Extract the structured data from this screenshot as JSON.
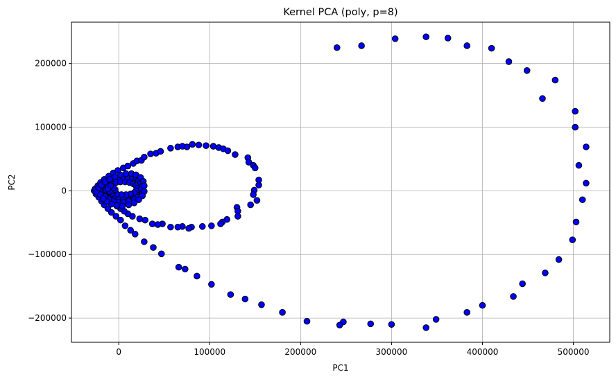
{
  "chart_data": {
    "type": "scatter",
    "title": "Kernel PCA (poly, p=8)",
    "xlabel": "PC1",
    "ylabel": "PC2",
    "xlim": [
      -52000,
      540000
    ],
    "ylim": [
      -238000,
      265000
    ],
    "xticks": [
      0,
      100000,
      200000,
      300000,
      400000,
      500000
    ],
    "xtick_labels": [
      "0",
      "100000",
      "200000",
      "300000",
      "400000",
      "500000"
    ],
    "yticks": [
      -200000,
      -100000,
      0,
      100000,
      200000
    ],
    "ytick_labels": [
      "−200000",
      "−100000",
      "0",
      "100000",
      "200000"
    ],
    "grid": true,
    "marker_color": "#0000ff",
    "edge_color": "#000000",
    "points": [
      [
        240000,
        225000
      ],
      [
        267000,
        228000
      ],
      [
        304000,
        239000
      ],
      [
        338000,
        242000
      ],
      [
        362000,
        240000
      ],
      [
        383000,
        228000
      ],
      [
        410000,
        224000
      ],
      [
        429000,
        203000
      ],
      [
        449000,
        189000
      ],
      [
        480000,
        174000
      ],
      [
        466000,
        145000
      ],
      [
        502000,
        125000
      ],
      [
        502000,
        100000
      ],
      [
        514000,
        69000
      ],
      [
        506000,
        40000
      ],
      [
        514000,
        12000
      ],
      [
        510000,
        -14000
      ],
      [
        503000,
        -49000
      ],
      [
        499000,
        -77000
      ],
      [
        484000,
        -108000
      ],
      [
        469000,
        -129000
      ],
      [
        444000,
        -146000
      ],
      [
        434000,
        -166000
      ],
      [
        400000,
        -180000
      ],
      [
        383000,
        -191000
      ],
      [
        349000,
        -202000
      ],
      [
        338000,
        -215000
      ],
      [
        300000,
        -210000
      ],
      [
        277000,
        -209000
      ],
      [
        247000,
        -206000
      ],
      [
        243000,
        -211000
      ],
      [
        207000,
        -205000
      ],
      [
        180000,
        -191000
      ],
      [
        157000,
        -179000
      ],
      [
        139000,
        -170000
      ],
      [
        123000,
        -163000
      ],
      [
        102000,
        -147000
      ],
      [
        86000,
        -134000
      ],
      [
        73000,
        -123000
      ],
      [
        66000,
        -120000
      ],
      [
        47000,
        -99000
      ],
      [
        38000,
        -89000
      ],
      [
        28000,
        -80000
      ],
      [
        18000,
        -68000
      ],
      [
        13000,
        -62000
      ],
      [
        7000,
        -55000
      ],
      [
        2000,
        -46000
      ],
      [
        -3000,
        -40000
      ],
      [
        -8000,
        -34000
      ],
      [
        -12000,
        -28000
      ],
      [
        -16000,
        -22000
      ],
      [
        -19000,
        -16000
      ],
      [
        -22000,
        -10000
      ],
      [
        -25000,
        -5000
      ],
      [
        -27000,
        0
      ],
      [
        -26000,
        3000
      ],
      [
        -23000,
        8000
      ],
      [
        -20000,
        13000
      ],
      [
        -16000,
        18000
      ],
      [
        -11000,
        23000
      ],
      [
        -6000,
        28000
      ],
      [
        -1000,
        32000
      ],
      [
        5000,
        36000
      ],
      [
        10000,
        39000
      ],
      [
        16000,
        43000
      ],
      [
        20000,
        47000
      ],
      [
        25000,
        48000
      ],
      [
        28000,
        53000
      ],
      [
        35000,
        58000
      ],
      [
        41000,
        59000
      ],
      [
        46000,
        62000
      ],
      [
        57000,
        67000
      ],
      [
        65000,
        69000
      ],
      [
        70000,
        70000
      ],
      [
        75000,
        69000
      ],
      [
        81000,
        73000
      ],
      [
        88000,
        72000
      ],
      [
        96000,
        71000
      ],
      [
        104000,
        70000
      ],
      [
        110000,
        68000
      ],
      [
        115000,
        66000
      ],
      [
        120000,
        63000
      ],
      [
        128000,
        57000
      ],
      [
        142000,
        52000
      ],
      [
        143000,
        45000
      ],
      [
        148000,
        40000
      ],
      [
        150000,
        36000
      ],
      [
        154000,
        17000
      ],
      [
        154000,
        9000
      ],
      [
        149000,
        1000
      ],
      [
        148000,
        -6000
      ],
      [
        152000,
        -15000
      ],
      [
        145000,
        -22000
      ],
      [
        130000,
        -26000
      ],
      [
        131000,
        -32000
      ],
      [
        131000,
        -40000
      ],
      [
        119000,
        -45000
      ],
      [
        114000,
        -49000
      ],
      [
        112000,
        -52000
      ],
      [
        102000,
        -55000
      ],
      [
        92000,
        -56000
      ],
      [
        80000,
        -57000
      ],
      [
        77000,
        -59000
      ],
      [
        70000,
        -56000
      ],
      [
        65000,
        -57000
      ],
      [
        57000,
        -57000
      ],
      [
        48000,
        -52000
      ],
      [
        43000,
        -53000
      ],
      [
        37000,
        -52000
      ],
      [
        29000,
        -46000
      ],
      [
        23000,
        -44000
      ],
      [
        15000,
        -40000
      ],
      [
        10000,
        -36000
      ],
      [
        6000,
        -32000
      ],
      [
        2000,
        -28000
      ],
      [
        -2000,
        -24000
      ],
      [
        -6000,
        -20000
      ],
      [
        -9000,
        -15000
      ],
      [
        -12000,
        -10000
      ],
      [
        -15000,
        -5000
      ],
      [
        -20000,
        -2000
      ],
      [
        -17000,
        5000
      ],
      [
        -14000,
        10000
      ],
      [
        -10000,
        14000
      ],
      [
        -5000,
        17000
      ],
      [
        0,
        19000
      ],
      [
        5000,
        20000
      ],
      [
        10000,
        21000
      ],
      [
        15000,
        21000
      ],
      [
        19000,
        20000
      ],
      [
        22000,
        17000
      ],
      [
        24000,
        12000
      ],
      [
        24000,
        6000
      ],
      [
        22000,
        0
      ],
      [
        19000,
        -5000
      ],
      [
        15000,
        -8000
      ],
      [
        10000,
        -10000
      ],
      [
        4000,
        -11000
      ],
      [
        -1000,
        -11000
      ],
      [
        -6000,
        -10000
      ],
      [
        -10000,
        -8000
      ],
      [
        -14000,
        -5000
      ],
      [
        -18000,
        0
      ],
      [
        -15000,
        4000
      ],
      [
        -12000,
        8000
      ],
      [
        -8000,
        11000
      ],
      [
        -3000,
        13000
      ],
      [
        2000,
        14000
      ],
      [
        7000,
        14000
      ],
      [
        12000,
        13000
      ],
      [
        16000,
        11000
      ],
      [
        19000,
        8000
      ],
      [
        20000,
        4000
      ],
      [
        19000,
        0
      ],
      [
        17000,
        -3000
      ],
      [
        13000,
        -5000
      ],
      [
        8000,
        -6000
      ],
      [
        3000,
        -6000
      ],
      [
        -2000,
        -5000
      ],
      [
        -7000,
        -4000
      ],
      [
        -11000,
        -2000
      ],
      [
        -21000,
        2000
      ],
      [
        -24000,
        -2000
      ],
      [
        -14000,
        1000
      ],
      [
        -10000,
        -1000
      ],
      [
        -7000,
        0
      ],
      [
        -4000,
        2000
      ],
      [
        -6000,
        5000
      ],
      [
        -9000,
        8000
      ],
      [
        -12000,
        3000
      ],
      [
        25000,
        3000
      ],
      [
        26000,
        -4000
      ],
      [
        21000,
        -10000
      ],
      [
        17000,
        -14000
      ],
      [
        11000,
        -16000
      ],
      [
        5000,
        -18000
      ],
      [
        -1000,
        -18000
      ],
      [
        -6000,
        -16000
      ],
      [
        -11000,
        -13000
      ],
      [
        -15000,
        -9000
      ],
      [
        -20000,
        -6000
      ],
      [
        -22000,
        5000
      ],
      [
        -19000,
        9000
      ],
      [
        -15000,
        14000
      ],
      [
        -10000,
        18000
      ],
      [
        -4000,
        22000
      ],
      [
        2000,
        25000
      ],
      [
        8000,
        27000
      ],
      [
        14000,
        27000
      ],
      [
        19000,
        25000
      ],
      [
        24000,
        21000
      ],
      [
        27000,
        15000
      ],
      [
        28000,
        8000
      ],
      [
        28000,
        -1000
      ],
      [
        26000,
        -8000
      ],
      [
        22000,
        -14000
      ],
      [
        17000,
        -19000
      ],
      [
        11000,
        -22000
      ],
      [
        4000,
        -24000
      ],
      [
        -2000,
        -23000
      ],
      [
        -8000,
        -21000
      ],
      [
        -13000,
        -17000
      ],
      [
        -17000,
        -12000
      ]
    ]
  }
}
